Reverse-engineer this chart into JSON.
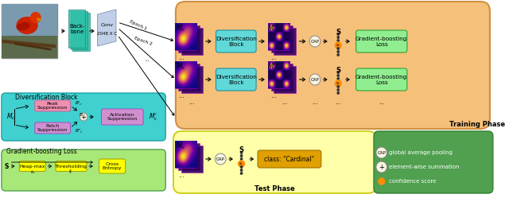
{
  "training_phase_text": "Training Phase",
  "test_phase_text": "Test Phase",
  "diversification_block_title": "Diversification Block",
  "gradient_loss_title": "Gradient-boosting Loss",
  "bg_training": "#F5C07A",
  "bg_test": "#FFFFAA",
  "bg_div_block": "#40D0D0",
  "bg_grad_loss": "#A8E878",
  "color_div_box": "#60D8D8",
  "color_grad_box": "#90EE90",
  "color_peak": "#F090B0",
  "color_patch": "#D090D0",
  "color_act": "#D090D0",
  "color_yellow": "#FFFF00",
  "color_cardinal": "#E0A000",
  "color_backbone": "#30C0A8",
  "color_conv": "#C0D0E8",
  "color_legend_bg": "#50A050",
  "color_gap_fill": "#F8F4E0",
  "color_orange": "#FF8C00"
}
